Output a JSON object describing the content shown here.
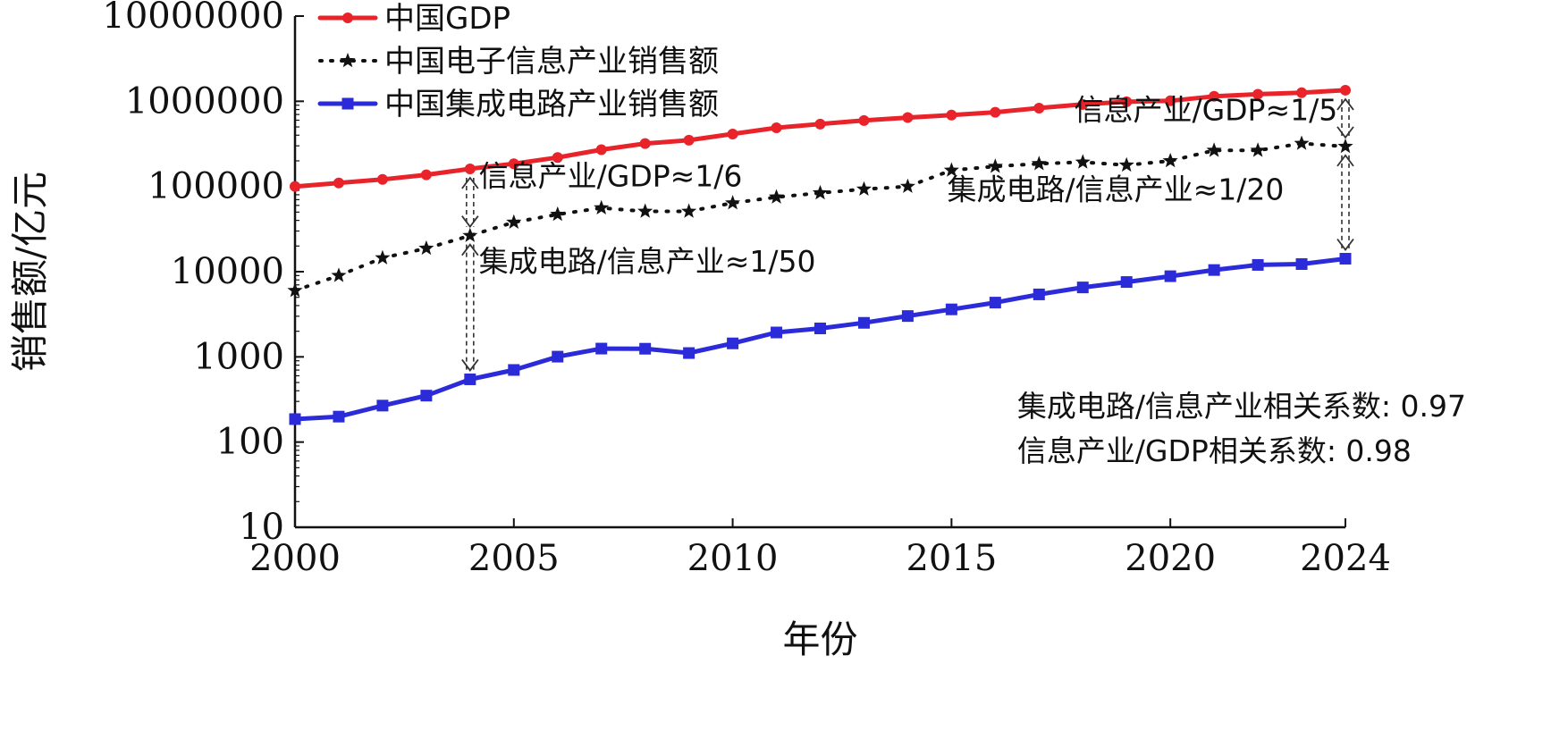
{
  "chart_data": {
    "type": "line",
    "title": "",
    "xlabel": "年份",
    "ylabel": "销售额/亿元",
    "y_scale": "log",
    "xlim": [
      2000,
      2024
    ],
    "ylim": [
      10,
      10000000
    ],
    "x_ticks": [
      2000,
      2005,
      2010,
      2015,
      2020,
      2024
    ],
    "y_ticks": [
      10,
      100,
      1000,
      10000,
      100000,
      1000000,
      10000000
    ],
    "grid": false,
    "legend_position": "top-left",
    "x": [
      2000,
      2001,
      2002,
      2003,
      2004,
      2005,
      2006,
      2007,
      2008,
      2009,
      2010,
      2011,
      2012,
      2013,
      2014,
      2015,
      2016,
      2017,
      2018,
      2019,
      2020,
      2021,
      2022,
      2023,
      2024
    ],
    "series": [
      {
        "name": "中国GDP",
        "color": "#e8232a",
        "style": "solid",
        "marker": "circle",
        "values": [
          100000,
          110000,
          121000,
          137000,
          161000,
          185000,
          219000,
          270000,
          319000,
          349000,
          413000,
          489000,
          540000,
          595000,
          644000,
          689000,
          744000,
          832000,
          919000,
          986000,
          1013000,
          1143000,
          1210000,
          1260000,
          1349000
        ]
      },
      {
        "name": "中国电子信息产业销售额",
        "color": "#111111",
        "style": "dotted",
        "marker": "star",
        "values": [
          6000,
          9000,
          14500,
          18800,
          26500,
          38000,
          47000,
          56000,
          51000,
          51000,
          64000,
          75000,
          84000,
          93000,
          100000,
          155000,
          172000,
          185000,
          193000,
          178000,
          200000,
          265000,
          265000,
          320000,
          295000
        ]
      },
      {
        "name": "中国集成电路产业销售额",
        "color": "#2b2bd9",
        "style": "solid",
        "marker": "square",
        "values": [
          186,
          199,
          268,
          351,
          545,
          702,
          1006,
          1251,
          1246,
          1109,
          1440,
          1934,
          2158,
          2509,
          3015,
          3610,
          4336,
          5411,
          6532,
          7562,
          8848,
          10458,
          12006,
          12277,
          14200
        ]
      }
    ],
    "annotations": [
      {
        "id": "ann-info-gdp-2004",
        "text": "信息产业/GDP≈1/6",
        "x": 2004.2,
        "y": 100000
      },
      {
        "id": "ann-ic-info-2004",
        "text": "集成电路/信息产业≈1/50",
        "x": 2004.2,
        "y": 10000
      },
      {
        "id": "ann-info-gdp-2024",
        "text": "信息产业/GDP≈1/5",
        "x": 2017.8,
        "y": 600000
      },
      {
        "id": "ann-ic-info-2024",
        "text": "集成电路/信息产业≈1/20",
        "x": 2014.9,
        "y": 70000
      },
      {
        "id": "ann-corr-ic",
        "text": "集成电路/信息产业相关系数: 0.97",
        "x": 2016.5,
        "y": 200
      },
      {
        "id": "ann-corr-info",
        "text": "信息产业/GDP相关系数: 0.98",
        "x": 2016.5,
        "y": 60
      }
    ],
    "ratio_arrows": [
      {
        "x": 2004,
        "from": 161000,
        "to": 26500
      },
      {
        "x": 2004,
        "from": 26500,
        "to": 545
      },
      {
        "x": 2024,
        "from": 1349000,
        "to": 295000
      },
      {
        "x": 2024,
        "from": 295000,
        "to": 14200
      }
    ]
  }
}
